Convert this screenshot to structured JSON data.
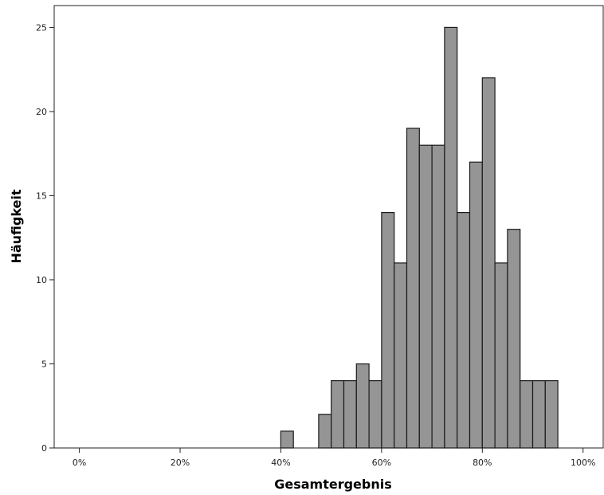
{
  "chart_data": {
    "type": "bar",
    "title": "",
    "xlabel": "Gesamtergebnis",
    "ylabel": "Häufigkeit",
    "xlim": [
      -0.05,
      1.04
    ],
    "ylim": [
      0,
      26.3
    ],
    "x_ticks": [
      {
        "value": 0,
        "label": "0%"
      },
      {
        "value": 0.2,
        "label": "20%"
      },
      {
        "value": 0.4,
        "label": "40%"
      },
      {
        "value": 0.6,
        "label": "60%"
      },
      {
        "value": 0.8,
        "label": "80%"
      },
      {
        "value": 1.0,
        "label": "100%"
      }
    ],
    "y_ticks": [
      {
        "value": 0,
        "label": "0"
      },
      {
        "value": 5,
        "label": "5"
      },
      {
        "value": 10,
        "label": "10"
      },
      {
        "value": 15,
        "label": "15"
      },
      {
        "value": 20,
        "label": "20"
      },
      {
        "value": 25,
        "label": "25"
      }
    ],
    "bin_width": 0.025,
    "bins": [
      {
        "start": 0.4,
        "value": 1
      },
      {
        "start": 0.475,
        "value": 2
      },
      {
        "start": 0.5,
        "value": 4
      },
      {
        "start": 0.525,
        "value": 4
      },
      {
        "start": 0.55,
        "value": 5
      },
      {
        "start": 0.575,
        "value": 4
      },
      {
        "start": 0.6,
        "value": 14
      },
      {
        "start": 0.625,
        "value": 11
      },
      {
        "start": 0.65,
        "value": 19
      },
      {
        "start": 0.675,
        "value": 18
      },
      {
        "start": 0.7,
        "value": 18
      },
      {
        "start": 0.725,
        "value": 25
      },
      {
        "start": 0.75,
        "value": 14
      },
      {
        "start": 0.775,
        "value": 17
      },
      {
        "start": 0.8,
        "value": 22
      },
      {
        "start": 0.825,
        "value": 11
      },
      {
        "start": 0.85,
        "value": 13
      },
      {
        "start": 0.875,
        "value": 4
      },
      {
        "start": 0.9,
        "value": 4
      },
      {
        "start": 0.925,
        "value": 4
      }
    ],
    "grid": false,
    "legend": "none"
  }
}
